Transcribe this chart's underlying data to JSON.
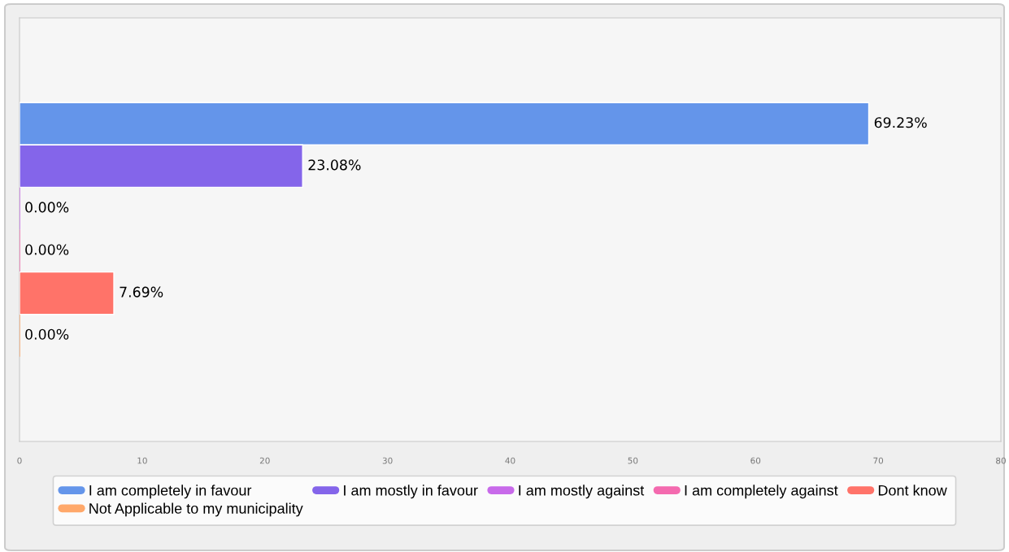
{
  "chart_data": {
    "type": "bar",
    "orientation": "horizontal",
    "categories": [
      null
    ],
    "series": [
      {
        "name": "I am completely in favour",
        "color": "#6495ea",
        "values": [
          69.23
        ],
        "value_labels": [
          "69.23%"
        ]
      },
      {
        "name": "I am mostly in favour",
        "color": "#8465ea",
        "values": [
          23.08
        ],
        "value_labels": [
          "23.08%"
        ]
      },
      {
        "name": "I am mostly against",
        "color": "#c86aea",
        "values": [
          0
        ],
        "value_labels": [
          "0.00%"
        ]
      },
      {
        "name": "I am completely against",
        "color": "#f46aaf",
        "values": [
          0
        ],
        "value_labels": [
          "0.00%"
        ]
      },
      {
        "name": "Dont know",
        "color": "#ff7369",
        "values": [
          7.69
        ],
        "value_labels": [
          "7.69%"
        ]
      },
      {
        "name": "Not Applicable to my municipality",
        "color": "#ffa86a",
        "values": [
          0
        ],
        "value_labels": [
          "0.00%"
        ]
      }
    ],
    "xlim": [
      0,
      80
    ],
    "xticks": [
      0,
      10,
      20,
      30,
      40,
      50,
      60,
      70,
      80
    ],
    "grid": false,
    "legend": "bottom"
  }
}
